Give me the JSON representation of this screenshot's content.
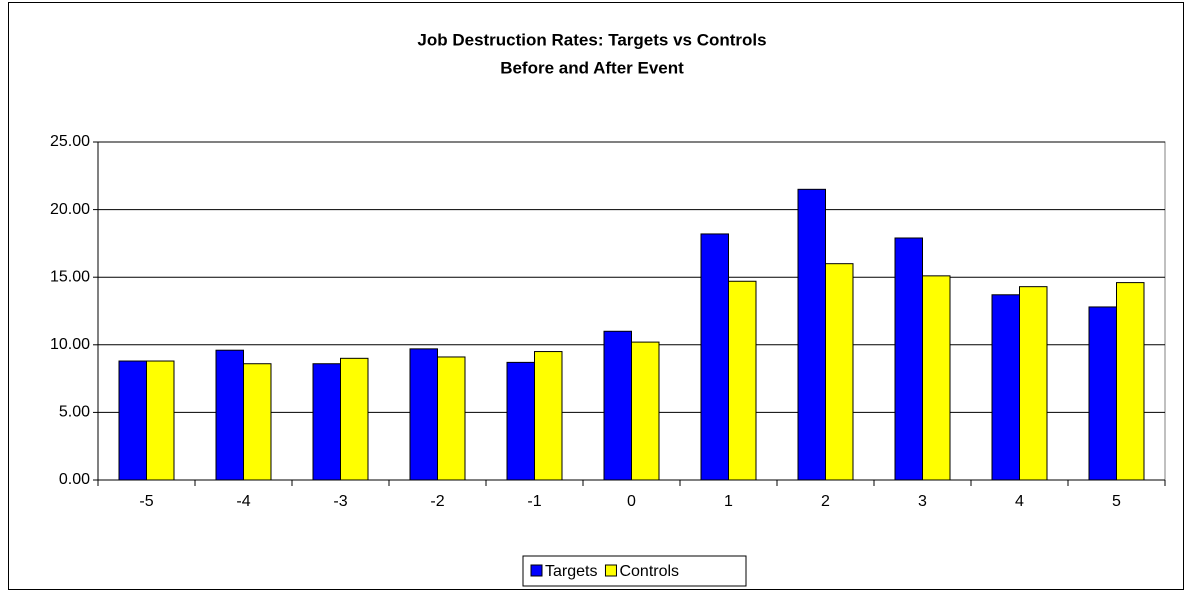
{
  "chart_data": {
    "type": "bar",
    "title": "Job Destruction Rates: Targets vs Controls",
    "subtitle": "Before and After Event",
    "categories": [
      "-5",
      "-4",
      "-3",
      "-2",
      "-1",
      "0",
      "1",
      "2",
      "3",
      "4",
      "5"
    ],
    "series": [
      {
        "name": "Targets",
        "color": "#0000ff",
        "values": [
          8.8,
          9.6,
          8.6,
          9.7,
          8.7,
          11.0,
          18.2,
          21.5,
          17.9,
          13.7,
          12.8
        ]
      },
      {
        "name": "Controls",
        "color": "#ffff00",
        "values": [
          8.8,
          8.6,
          9.0,
          9.1,
          9.5,
          10.2,
          14.7,
          16.0,
          15.1,
          14.3,
          14.6
        ]
      }
    ],
    "ylim": [
      0,
      25
    ],
    "yticks": [
      {
        "value": 0,
        "label": "0.00"
      },
      {
        "value": 5,
        "label": "5.00"
      },
      {
        "value": 10,
        "label": "10.00"
      },
      {
        "value": 15,
        "label": "15.00"
      },
      {
        "value": 20,
        "label": "20.00"
      },
      {
        "value": 25,
        "label": "25.00"
      }
    ],
    "grid": true,
    "legend": "bottom"
  }
}
